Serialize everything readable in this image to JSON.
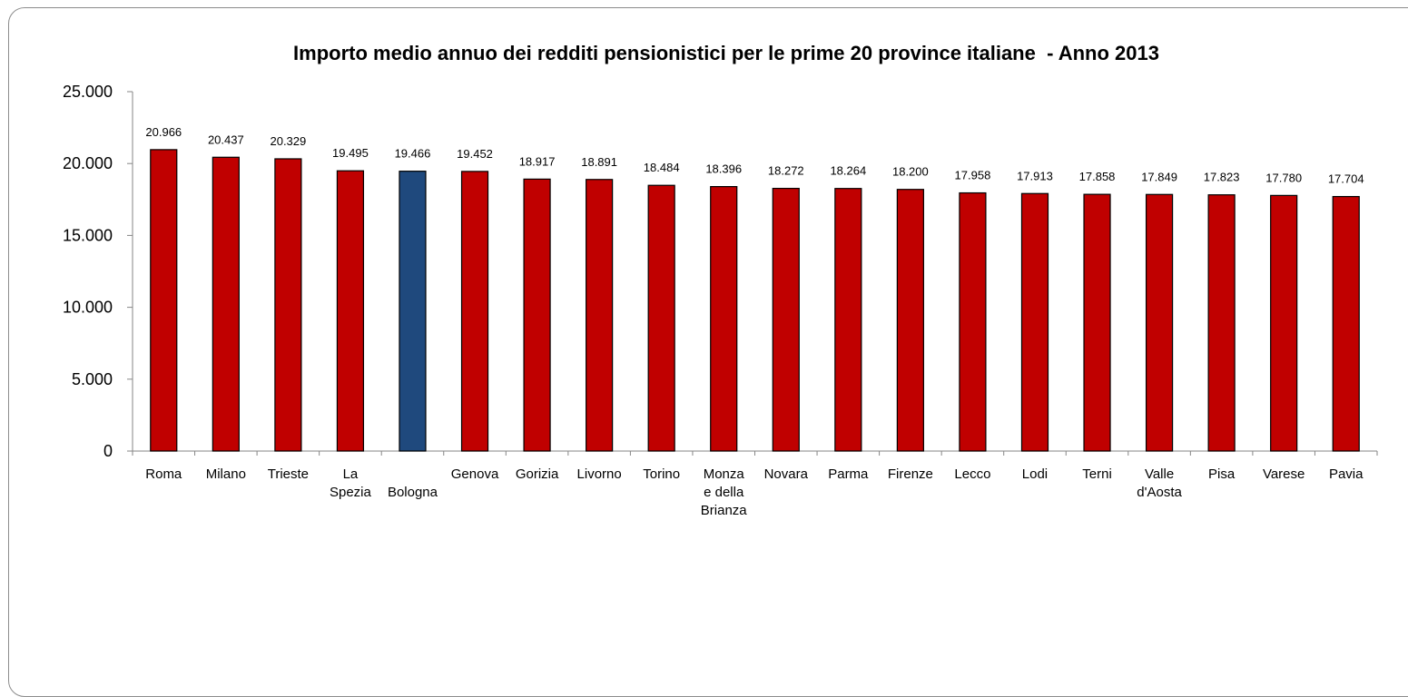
{
  "chart_data": {
    "type": "bar",
    "title": "Importo medio annuo dei redditi pensionistici per le prime 20 province italiane  - Anno 2013",
    "xlabel": "",
    "ylabel": "",
    "ylim": [
      0,
      25000
    ],
    "yticks": [
      0,
      5000,
      10000,
      15000,
      20000,
      25000
    ],
    "ytick_labels": [
      "0",
      "5.000",
      "10.000",
      "15.000",
      "20.000",
      "25.000"
    ],
    "grid": false,
    "legend": "none",
    "colors": {
      "default": "#C00000",
      "highlight": "#1F497D",
      "outline": "#000000"
    },
    "categories": [
      "Roma",
      "Milano",
      "Trieste",
      "La Spezia",
      "Bologna",
      "Genova",
      "Gorizia",
      "Livorno",
      "Torino",
      "Monza e della Brianza",
      "Novara",
      "Parma",
      "Firenze",
      "Lecco",
      "Lodi",
      "Terni",
      "Valle d'Aosta",
      "Pisa",
      "Varese",
      "Pavia"
    ],
    "category_label_lines": [
      [
        "Roma"
      ],
      [
        "Milano"
      ],
      [
        "Trieste"
      ],
      [
        "La",
        "Spezia"
      ],
      [
        "",
        "Bologna"
      ],
      [
        "Genova"
      ],
      [
        "Gorizia"
      ],
      [
        "Livorno"
      ],
      [
        "Torino"
      ],
      [
        "Monza",
        "e della",
        "Brianza"
      ],
      [
        "Novara"
      ],
      [
        "Parma"
      ],
      [
        "Firenze"
      ],
      [
        "Lecco"
      ],
      [
        "Lodi"
      ],
      [
        "Terni"
      ],
      [
        "Valle",
        "d'Aosta"
      ],
      [
        "Pisa"
      ],
      [
        "Varese"
      ],
      [
        "Pavia"
      ]
    ],
    "values": [
      20966,
      20437,
      20329,
      19495,
      19466,
      19452,
      18917,
      18891,
      18484,
      18396,
      18272,
      18264,
      18200,
      17958,
      17913,
      17858,
      17849,
      17823,
      17780,
      17704
    ],
    "data_labels": [
      "20.966",
      "20.437",
      "20.329",
      "19.495",
      "19.466",
      "19.452",
      "18.917",
      "18.891",
      "18.484",
      "18.396",
      "18.272",
      "18.264",
      "18.200",
      "17.958",
      "17.913",
      "17.858",
      "17.849",
      "17.823",
      "17.780",
      "17.704"
    ],
    "highlight_category": "Bologna"
  }
}
